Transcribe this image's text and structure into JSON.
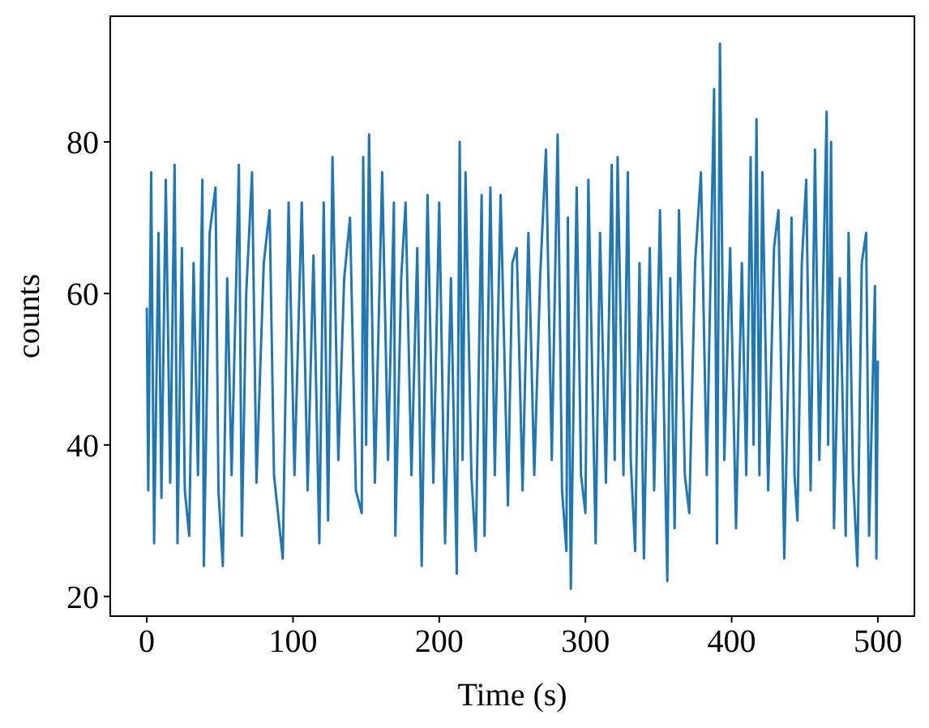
{
  "chart_data": {
    "type": "line",
    "xlabel": "Time (s)",
    "ylabel": "counts",
    "xlim": [
      -25,
      525
    ],
    "ylim": [
      17.4,
      96.6
    ],
    "xticks": [
      0,
      100,
      200,
      300,
      400,
      500
    ],
    "yticks": [
      20,
      40,
      60,
      80
    ],
    "grid": false,
    "marker": "none",
    "line_style": "solid",
    "series": [
      {
        "color": "#1f77b4",
        "x": [
          0,
          1,
          3,
          5,
          8,
          10,
          13,
          16,
          19,
          21,
          24,
          26,
          29,
          32,
          35,
          38,
          39,
          43,
          47,
          49,
          52,
          55,
          58,
          63,
          65,
          68,
          72,
          75,
          80,
          84,
          87,
          93,
          97,
          101,
          106,
          110,
          114,
          118,
          121,
          124,
          127,
          131,
          135,
          139,
          143,
          147,
          148,
          150,
          152,
          156,
          161,
          165,
          169,
          170,
          174,
          177,
          181,
          185,
          188,
          192,
          196,
          200,
          204,
          208,
          212,
          214,
          216,
          218,
          222,
          225,
          229,
          231,
          235,
          238,
          242,
          247,
          250,
          253,
          257,
          261,
          265,
          269,
          273,
          277,
          281,
          284,
          287,
          288,
          290,
          294,
          297,
          300,
          302,
          307,
          310,
          314,
          318,
          320,
          322,
          326,
          329,
          331,
          334,
          337,
          340,
          344,
          347,
          351,
          356,
          358,
          361,
          364,
          368,
          371,
          375,
          379,
          383,
          388,
          390,
          392,
          395,
          399,
          403,
          407,
          410,
          413,
          415,
          417,
          419,
          421,
          425,
          429,
          432,
          436,
          441,
          443,
          445,
          448,
          451,
          454,
          457,
          460,
          465,
          466,
          468,
          470,
          474,
          478,
          480,
          483,
          486,
          489,
          492,
          494,
          498,
          499,
          500
        ],
        "values": [
          58,
          34,
          76,
          27,
          68,
          33,
          75,
          35,
          77,
          27,
          66,
          34,
          28,
          64,
          36,
          75,
          24,
          68,
          74,
          34,
          24,
          62,
          36,
          77,
          28,
          60,
          76,
          35,
          64,
          71,
          36,
          25,
          72,
          36,
          72,
          34,
          65,
          27,
          72,
          30,
          78,
          38,
          62,
          70,
          34,
          31,
          78,
          40,
          81,
          35,
          76,
          38,
          72,
          28,
          62,
          72,
          36,
          66,
          24,
          73,
          35,
          72,
          27,
          62,
          23,
          80,
          38,
          76,
          36,
          26,
          73,
          28,
          74,
          36,
          73,
          32,
          64,
          66,
          34,
          68,
          36,
          62,
          79,
          38,
          81,
          34,
          26,
          70,
          21,
          74,
          36,
          31,
          75,
          27,
          68,
          35,
          77,
          38,
          78,
          36,
          76,
          38,
          26,
          64,
          25,
          66,
          34,
          71,
          22,
          62,
          29,
          71,
          36,
          31,
          64,
          76,
          36,
          87,
          27,
          93,
          38,
          66,
          29,
          64,
          36,
          78,
          40,
          83,
          36,
          76,
          34,
          66,
          71,
          25,
          70,
          36,
          30,
          64,
          75,
          34,
          79,
          38,
          84,
          40,
          80,
          29,
          62,
          28,
          68,
          36,
          24,
          64,
          68,
          28,
          61,
          25,
          51
        ]
      }
    ]
  }
}
